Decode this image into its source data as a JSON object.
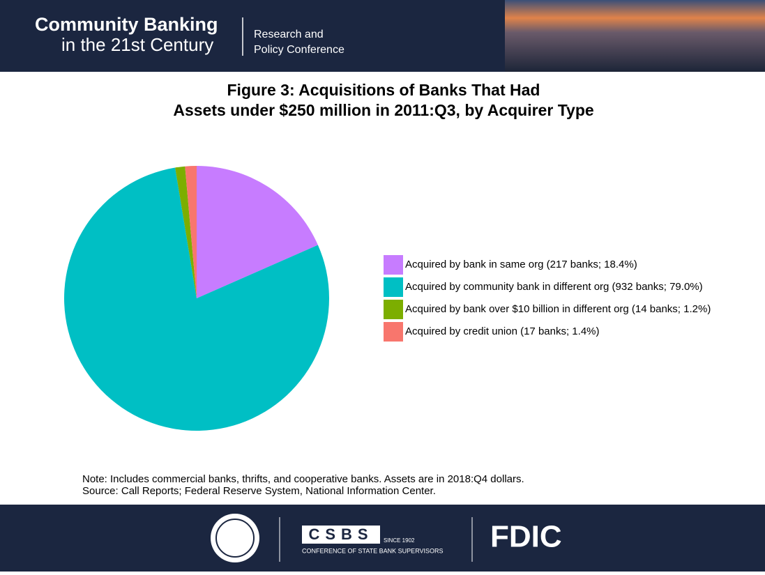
{
  "header": {
    "title_line1": "Community Banking",
    "title_line2": "in the 21st Century",
    "subtitle_line1": "Research and",
    "subtitle_line2": "Policy Conference"
  },
  "chart_data": {
    "type": "pie",
    "title": [
      "Figure 3: Acquisitions of Banks That Had",
      "Assets under $250 million in 2011:Q3, by Acquirer Type"
    ],
    "categories": [
      "Acquired by bank in same org (217 banks; 18.4%)",
      "Acquired by community bank in different org (932 banks; 79.0%)",
      "Acquired by bank over $10 billion in different org (14 banks; 1.2%)",
      "Acquired by credit union (17 banks; 1.4%)"
    ],
    "values": [
      18.4,
      79.0,
      1.2,
      1.4
    ],
    "colors": [
      "#c77cff",
      "#00bfc4",
      "#7cae00",
      "#f8766d"
    ],
    "legend": "right",
    "notes": [
      "Note: Includes commercial banks, thrifts, and cooperative banks. Assets are in 2018:Q4 dollars.",
      "Source: Call Reports; Federal Reserve System, National Information Center."
    ]
  },
  "footer": {
    "csbs": "CSBS",
    "since": "SINCE 1902",
    "csbs_name": "CONFERENCE OF STATE BANK SUPERVISORS",
    "fdic": "FDIC"
  }
}
